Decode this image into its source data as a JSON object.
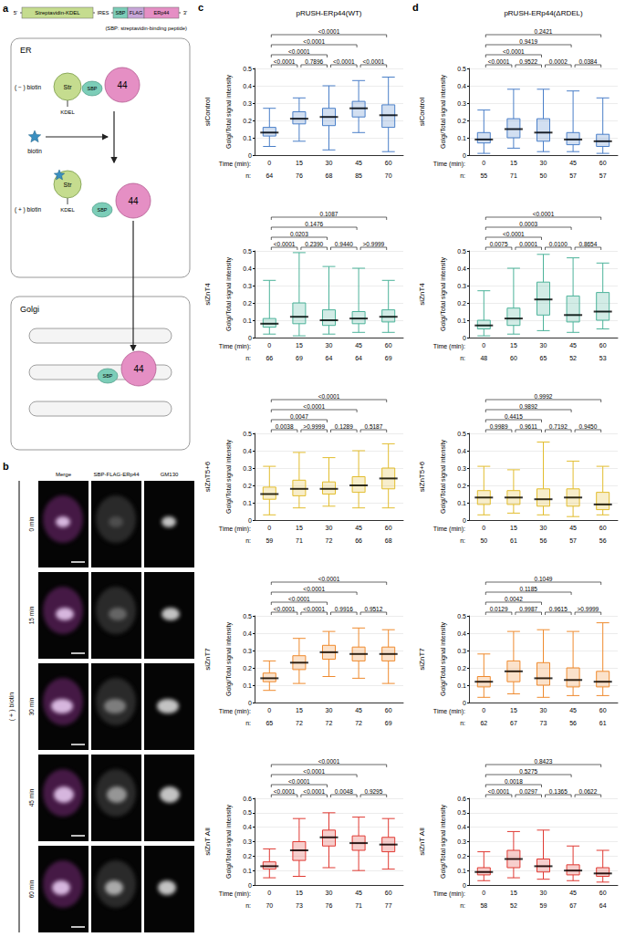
{
  "figure": {
    "a": {
      "letter": "a",
      "construct": {
        "five_prime": "5'",
        "parts": [
          "Streptavidin-KDEL",
          "IRES",
          "SBP",
          "FLAG",
          "ERp44"
        ],
        "three_prime": "3'"
      },
      "note": "(SBP: streptavidin-binding peptide)",
      "compartments": {
        "er": "ER",
        "golgi": "Golgi"
      },
      "states": {
        "minus": "( − ) biotin",
        "plus": "( + ) biotin"
      },
      "ligand": "biotin",
      "molecules": {
        "streptavidin": "Str",
        "retention": "KDEL",
        "tag": "SBP",
        "cargo": "44"
      }
    },
    "b": {
      "letter": "b",
      "columns": [
        "Merge",
        "SBP-FLAG-ERp44",
        "GM130"
      ],
      "rows": [
        "0 min",
        "15 min",
        "30 min",
        "45 min",
        "60 min"
      ],
      "condition": "( + ) biotin"
    },
    "panels": [
      {
        "letter": "c",
        "title": "pRUSH-ERp44(WT)"
      },
      {
        "letter": "d",
        "title": "pRUSH-ERp44(ΔRDEL)"
      }
    ]
  },
  "chart_data": [
    {
      "type": "box",
      "title": "siControl",
      "ylabel": "Golgi/Total signal intensity",
      "xlabel": "Time (min):",
      "n_label": "n:",
      "categories": [
        "0",
        "15",
        "30",
        "45",
        "60"
      ],
      "color": "#4a7fc8",
      "min": [
        0.05,
        0.08,
        0.03,
        0.13,
        0.02
      ],
      "q1": [
        0.11,
        0.18,
        0.17,
        0.22,
        0.16
      ],
      "median": [
        0.13,
        0.21,
        0.22,
        0.27,
        0.23
      ],
      "q3": [
        0.16,
        0.25,
        0.27,
        0.31,
        0.29
      ],
      "max": [
        0.27,
        0.33,
        0.4,
        0.43,
        0.45
      ],
      "n": [
        64,
        76,
        68,
        85,
        70
      ],
      "ylim": [
        0,
        0.5
      ],
      "yticks": [
        0,
        0.1,
        0.2,
        0.3,
        0.4,
        0.5
      ],
      "grid": true,
      "comparisons": [
        {
          "from": "0",
          "to": "60",
          "p": "<0.0001"
        },
        {
          "from": "0",
          "to": "45",
          "p": "<0.0001"
        },
        {
          "from": "0",
          "to": "30",
          "p": "<0.0001"
        },
        {
          "from": "0",
          "to": "15",
          "p": "<0.0001"
        },
        {
          "from": "15",
          "to": "30",
          "p": "0.7896"
        },
        {
          "from": "30",
          "to": "45",
          "p": "<0.0001"
        },
        {
          "from": "45",
          "to": "60",
          "p": "<0.0001"
        }
      ]
    },
    {
      "type": "box",
      "title": "siZnT4",
      "ylabel": "Golgi/Total signal intensity",
      "xlabel": "Time (min):",
      "n_label": "n:",
      "categories": [
        "0",
        "15",
        "30",
        "45",
        "60"
      ],
      "color": "#4db39a",
      "min": [
        0.02,
        0.01,
        0.02,
        0.03,
        0.03
      ],
      "q1": [
        0.06,
        0.08,
        0.07,
        0.08,
        0.09
      ],
      "median": [
        0.08,
        0.12,
        0.1,
        0.11,
        0.12
      ],
      "q3": [
        0.11,
        0.2,
        0.16,
        0.15,
        0.16
      ],
      "max": [
        0.33,
        0.49,
        0.41,
        0.4,
        0.33
      ],
      "n": [
        66,
        69,
        64,
        64,
        69
      ],
      "ylim": [
        0,
        0.5
      ],
      "yticks": [
        0,
        0.1,
        0.2,
        0.3,
        0.4,
        0.5
      ],
      "grid": true,
      "comparisons": [
        {
          "from": "0",
          "to": "60",
          "p": "0.1087"
        },
        {
          "from": "0",
          "to": "45",
          "p": "0.1476"
        },
        {
          "from": "0",
          "to": "30",
          "p": "0.0203"
        },
        {
          "from": "0",
          "to": "15",
          "p": "<0.0001"
        },
        {
          "from": "15",
          "to": "30",
          "p": "0.2390"
        },
        {
          "from": "30",
          "to": "45",
          "p": "0.9440"
        },
        {
          "from": "45",
          "to": "60",
          "p": ">0.9999"
        }
      ]
    },
    {
      "type": "box",
      "title": "siZnT5+6",
      "ylabel": "Golgi/Total signal intensity",
      "xlabel": "Time (min):",
      "n_label": "n:",
      "categories": [
        "0",
        "15",
        "30",
        "45",
        "60"
      ],
      "color": "#e2bd2e",
      "min": [
        0.03,
        0.07,
        0.08,
        0.07,
        0.07
      ],
      "q1": [
        0.12,
        0.14,
        0.15,
        0.16,
        0.18
      ],
      "median": [
        0.15,
        0.18,
        0.18,
        0.2,
        0.24
      ],
      "q3": [
        0.19,
        0.23,
        0.22,
        0.25,
        0.3
      ],
      "max": [
        0.31,
        0.39,
        0.36,
        0.4,
        0.44
      ],
      "n": [
        59,
        71,
        72,
        66,
        68
      ],
      "ylim": [
        0,
        0.5
      ],
      "yticks": [
        0,
        0.1,
        0.2,
        0.3,
        0.4,
        0.5
      ],
      "grid": true,
      "comparisons": [
        {
          "from": "0",
          "to": "60",
          "p": "<0.0001"
        },
        {
          "from": "0",
          "to": "45",
          "p": "<0.0001"
        },
        {
          "from": "0",
          "to": "30",
          "p": "0.0047"
        },
        {
          "from": "0",
          "to": "15",
          "p": "0.0038"
        },
        {
          "from": "15",
          "to": "30",
          "p": ">0.9999"
        },
        {
          "from": "30",
          "to": "45",
          "p": "0.1289"
        },
        {
          "from": "45",
          "to": "60",
          "p": "0.5187"
        }
      ]
    },
    {
      "type": "box",
      "title": "siZnT7",
      "ylabel": "Golgi/Total signal intensity",
      "xlabel": "Time (min):",
      "n_label": "n:",
      "categories": [
        "0",
        "15",
        "30",
        "45",
        "60"
      ],
      "color": "#ef8a2e",
      "min": [
        0.07,
        0.11,
        0.15,
        0.14,
        0.11
      ],
      "q1": [
        0.12,
        0.19,
        0.25,
        0.24,
        0.24
      ],
      "median": [
        0.14,
        0.23,
        0.29,
        0.28,
        0.28
      ],
      "q3": [
        0.17,
        0.27,
        0.33,
        0.32,
        0.32
      ],
      "max": [
        0.24,
        0.37,
        0.41,
        0.43,
        0.42
      ],
      "n": [
        65,
        72,
        72,
        72,
        69
      ],
      "ylim": [
        0,
        0.5
      ],
      "yticks": [
        0,
        0.1,
        0.2,
        0.3,
        0.4,
        0.5
      ],
      "grid": true,
      "comparisons": [
        {
          "from": "0",
          "to": "60",
          "p": "<0.0001"
        },
        {
          "from": "0",
          "to": "45",
          "p": "<0.0001"
        },
        {
          "from": "0",
          "to": "30",
          "p": "<0.0001"
        },
        {
          "from": "0",
          "to": "15",
          "p": "<0.0001"
        },
        {
          "from": "15",
          "to": "30",
          "p": "<0.0001"
        },
        {
          "from": "30",
          "to": "45",
          "p": "0.9916"
        },
        {
          "from": "45",
          "to": "60",
          "p": "0.9512"
        }
      ]
    },
    {
      "type": "box",
      "title": "siZnT All",
      "ylabel": "Golgi/Total signal intensity",
      "xlabel": "Time (min):",
      "n_label": "n:",
      "categories": [
        "0",
        "15",
        "30",
        "45",
        "60"
      ],
      "color": "#e03a33",
      "min": [
        0.05,
        0.06,
        0.12,
        0.1,
        0.11
      ],
      "q1": [
        0.11,
        0.17,
        0.27,
        0.24,
        0.23
      ],
      "median": [
        0.13,
        0.24,
        0.33,
        0.29,
        0.28
      ],
      "q3": [
        0.16,
        0.3,
        0.38,
        0.34,
        0.33
      ],
      "max": [
        0.25,
        0.46,
        0.5,
        0.47,
        0.46
      ],
      "n": [
        70,
        73,
        76,
        71,
        77
      ],
      "ylim": [
        0,
        0.6
      ],
      "yticks": [
        0,
        0.1,
        0.2,
        0.3,
        0.4,
        0.5,
        0.6
      ],
      "grid": true,
      "comparisons": [
        {
          "from": "0",
          "to": "60",
          "p": "<0.0001"
        },
        {
          "from": "0",
          "to": "45",
          "p": "<0.0001"
        },
        {
          "from": "0",
          "to": "30",
          "p": "<0.0001"
        },
        {
          "from": "0",
          "to": "15",
          "p": "<0.0001"
        },
        {
          "from": "15",
          "to": "30",
          "p": "<0.0001"
        },
        {
          "from": "30",
          "to": "45",
          "p": "0.0048"
        },
        {
          "from": "45",
          "to": "60",
          "p": "0.9295"
        }
      ]
    },
    {
      "type": "box",
      "title": "siControl",
      "ylabel": "Golgi/Total signal intensity",
      "xlabel": "Time (min):",
      "n_label": "n:",
      "categories": [
        "0",
        "15",
        "30",
        "45",
        "60"
      ],
      "color": "#4a7fc8",
      "min": [
        0.01,
        0.04,
        0.02,
        0.02,
        0.01
      ],
      "q1": [
        0.07,
        0.1,
        0.08,
        0.06,
        0.05
      ],
      "median": [
        0.09,
        0.15,
        0.13,
        0.09,
        0.08
      ],
      "q3": [
        0.13,
        0.21,
        0.21,
        0.13,
        0.12
      ],
      "max": [
        0.26,
        0.38,
        0.38,
        0.37,
        0.33
      ],
      "n": [
        55,
        71,
        50,
        57,
        57
      ],
      "ylim": [
        0,
        0.5
      ],
      "yticks": [
        0,
        0.1,
        0.2,
        0.3,
        0.4,
        0.5
      ],
      "grid": true,
      "comparisons": [
        {
          "from": "0",
          "to": "60",
          "p": "0.2421"
        },
        {
          "from": "0",
          "to": "45",
          "p": "0.9419"
        },
        {
          "from": "0",
          "to": "30",
          "p": "<0.0001"
        },
        {
          "from": "0",
          "to": "15",
          "p": "<0.0001"
        },
        {
          "from": "15",
          "to": "30",
          "p": "0.9522"
        },
        {
          "from": "30",
          "to": "45",
          "p": "0.0002"
        },
        {
          "from": "45",
          "to": "60",
          "p": "0.0384"
        }
      ]
    },
    {
      "type": "box",
      "title": "siZnT4",
      "ylabel": "Golgi/Total signal intensity",
      "xlabel": "Time (min):",
      "n_label": "n:",
      "categories": [
        "0",
        "15",
        "30",
        "45",
        "60"
      ],
      "color": "#4db39a",
      "min": [
        0.01,
        0.02,
        0.04,
        0.03,
        0.05
      ],
      "q1": [
        0.05,
        0.07,
        0.13,
        0.09,
        0.1
      ],
      "median": [
        0.07,
        0.11,
        0.22,
        0.13,
        0.15
      ],
      "q3": [
        0.1,
        0.17,
        0.32,
        0.24,
        0.26
      ],
      "max": [
        0.27,
        0.4,
        0.48,
        0.46,
        0.43
      ],
      "n": [
        48,
        60,
        65,
        52,
        53
      ],
      "ylim": [
        0,
        0.5
      ],
      "yticks": [
        0,
        0.1,
        0.2,
        0.3,
        0.4,
        0.5
      ],
      "grid": true,
      "comparisons": [
        {
          "from": "0",
          "to": "60",
          "p": "<0.0001"
        },
        {
          "from": "0",
          "to": "45",
          "p": "0.0003"
        },
        {
          "from": "0",
          "to": "30",
          "p": "<0.0001"
        },
        {
          "from": "0",
          "to": "15",
          "p": "0.0075"
        },
        {
          "from": "15",
          "to": "30",
          "p": "0.0001"
        },
        {
          "from": "30",
          "to": "45",
          "p": "0.0100"
        },
        {
          "from": "45",
          "to": "60",
          "p": "0.8654"
        }
      ]
    },
    {
      "type": "box",
      "title": "siZnT5+6",
      "ylabel": "Golgi/Total signal intensity",
      "xlabel": "Time (min):",
      "n_label": "n:",
      "categories": [
        "0",
        "15",
        "30",
        "45",
        "60"
      ],
      "color": "#e2bd2e",
      "min": [
        0.03,
        0.04,
        0.03,
        0.02,
        0.03
      ],
      "q1": [
        0.09,
        0.09,
        0.08,
        0.08,
        0.06
      ],
      "median": [
        0.13,
        0.13,
        0.12,
        0.13,
        0.09
      ],
      "q3": [
        0.17,
        0.17,
        0.18,
        0.18,
        0.16
      ],
      "max": [
        0.31,
        0.29,
        0.45,
        0.34,
        0.31
      ],
      "n": [
        50,
        61,
        56,
        57,
        56
      ],
      "ylim": [
        0,
        0.5
      ],
      "yticks": [
        0,
        0.1,
        0.2,
        0.3,
        0.4,
        0.5
      ],
      "grid": true,
      "comparisons": [
        {
          "from": "0",
          "to": "60",
          "p": "0.9992"
        },
        {
          "from": "0",
          "to": "45",
          "p": "0.9892"
        },
        {
          "from": "0",
          "to": "30",
          "p": "0.4415"
        },
        {
          "from": "0",
          "to": "15",
          "p": "0.9989"
        },
        {
          "from": "15",
          "to": "30",
          "p": "0.9611"
        },
        {
          "from": "30",
          "to": "45",
          "p": "0.7192"
        },
        {
          "from": "45",
          "to": "60",
          "p": "0.9450"
        }
      ]
    },
    {
      "type": "box",
      "title": "siZnT7",
      "ylabel": "Golgi/Total signal intensity",
      "xlabel": "Time (min):",
      "n_label": "n:",
      "categories": [
        "0",
        "15",
        "30",
        "45",
        "60"
      ],
      "color": "#ef8a2e",
      "min": [
        0.03,
        0.05,
        0.03,
        0.04,
        0.04
      ],
      "q1": [
        0.09,
        0.12,
        0.1,
        0.09,
        0.09
      ],
      "median": [
        0.12,
        0.18,
        0.14,
        0.13,
        0.12
      ],
      "q3": [
        0.15,
        0.24,
        0.23,
        0.2,
        0.18
      ],
      "max": [
        0.28,
        0.41,
        0.42,
        0.41,
        0.46
      ],
      "n": [
        62,
        67,
        73,
        56,
        61
      ],
      "ylim": [
        0,
        0.5
      ],
      "yticks": [
        0,
        0.1,
        0.2,
        0.3,
        0.4,
        0.5
      ],
      "grid": true,
      "comparisons": [
        {
          "from": "0",
          "to": "60",
          "p": "0.1049"
        },
        {
          "from": "0",
          "to": "45",
          "p": "0.1185"
        },
        {
          "from": "0",
          "to": "30",
          "p": "0.0042"
        },
        {
          "from": "0",
          "to": "15",
          "p": "0.0129"
        },
        {
          "from": "15",
          "to": "30",
          "p": "0.9987"
        },
        {
          "from": "30",
          "to": "45",
          "p": "0.9615"
        },
        {
          "from": "45",
          "to": "60",
          "p": ">0.9999"
        }
      ]
    },
    {
      "type": "box",
      "title": "siZnT All",
      "ylabel": "Golgi/Total signal intensity",
      "xlabel": "Time (min):",
      "n_label": "n:",
      "categories": [
        "0",
        "15",
        "30",
        "45",
        "60"
      ],
      "color": "#e03a33",
      "min": [
        0.03,
        0.05,
        0.04,
        0.03,
        0.02
      ],
      "q1": [
        0.07,
        0.12,
        0.09,
        0.07,
        0.06
      ],
      "median": [
        0.09,
        0.18,
        0.13,
        0.1,
        0.08
      ],
      "q3": [
        0.12,
        0.24,
        0.18,
        0.14,
        0.12
      ],
      "max": [
        0.23,
        0.37,
        0.38,
        0.27,
        0.24
      ],
      "n": [
        58,
        52,
        59,
        67,
        64
      ],
      "ylim": [
        0,
        0.6
      ],
      "yticks": [
        0,
        0.1,
        0.2,
        0.3,
        0.4,
        0.5,
        0.6
      ],
      "grid": true,
      "comparisons": [
        {
          "from": "0",
          "to": "60",
          "p": "0.8423"
        },
        {
          "from": "0",
          "to": "45",
          "p": "0.5275"
        },
        {
          "from": "0",
          "to": "30",
          "p": "0.0018"
        },
        {
          "from": "0",
          "to": "15",
          "p": "<0.0001"
        },
        {
          "from": "15",
          "to": "30",
          "p": "0.0297"
        },
        {
          "from": "30",
          "to": "45",
          "p": "0.1365"
        },
        {
          "from": "45",
          "to": "60",
          "p": "0.0622"
        }
      ]
    }
  ]
}
